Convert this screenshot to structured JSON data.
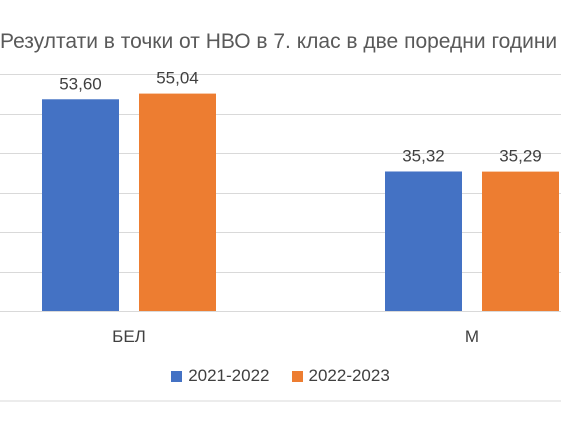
{
  "chart_data": {
    "type": "bar",
    "title": "Резултати в точки от НВО в 7. клас в две поредни години",
    "xlabel": "",
    "ylabel": "",
    "categories": [
      "БЕЛ",
      "М"
    ],
    "series": [
      {
        "name": "2021-2022",
        "color": "#4472C4",
        "values": [
          53.6,
          35.32
        ],
        "labels": [
          "53,60",
          "35,32"
        ]
      },
      {
        "name": "2022-2023",
        "color": "#ED7D31",
        "values": [
          55.04,
          35.29
        ],
        "labels": [
          "55,04",
          "35,29"
        ]
      }
    ],
    "ylim": [
      0,
      60
    ],
    "grid": true,
    "legend": "bottom"
  }
}
